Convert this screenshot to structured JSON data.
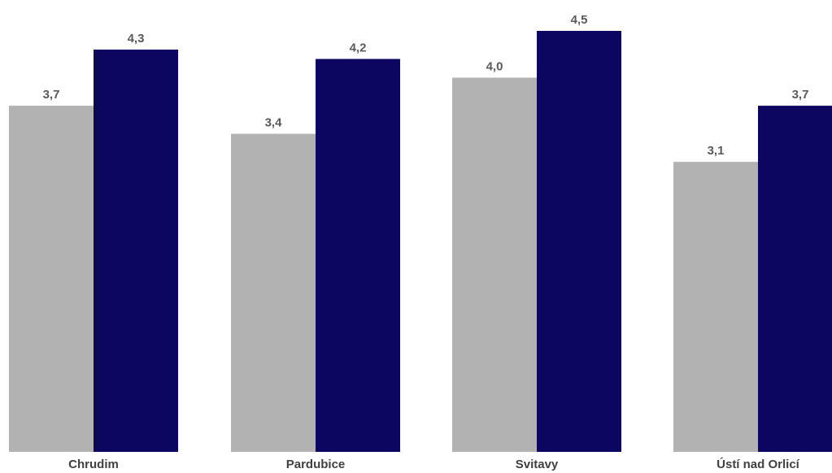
{
  "chart_data": {
    "type": "bar",
    "categories": [
      "Chrudim",
      "Pardubice",
      "Svitavy",
      "Ústí nad Orlicí"
    ],
    "series": [
      {
        "values": [
          3.7,
          3.4,
          4.0,
          3.1
        ],
        "value_labels": [
          "3,7",
          "3,4",
          "4,0",
          "3,1"
        ],
        "color": "#b2b2b2"
      },
      {
        "values": [
          4.3,
          4.2,
          4.5,
          3.7
        ],
        "value_labels": [
          "4,3",
          "4,2",
          "4,5",
          "3,7"
        ],
        "color": "#0d0661"
      }
    ],
    "ylim": [
      0,
      4.5
    ],
    "grid": false,
    "legend": "none"
  }
}
